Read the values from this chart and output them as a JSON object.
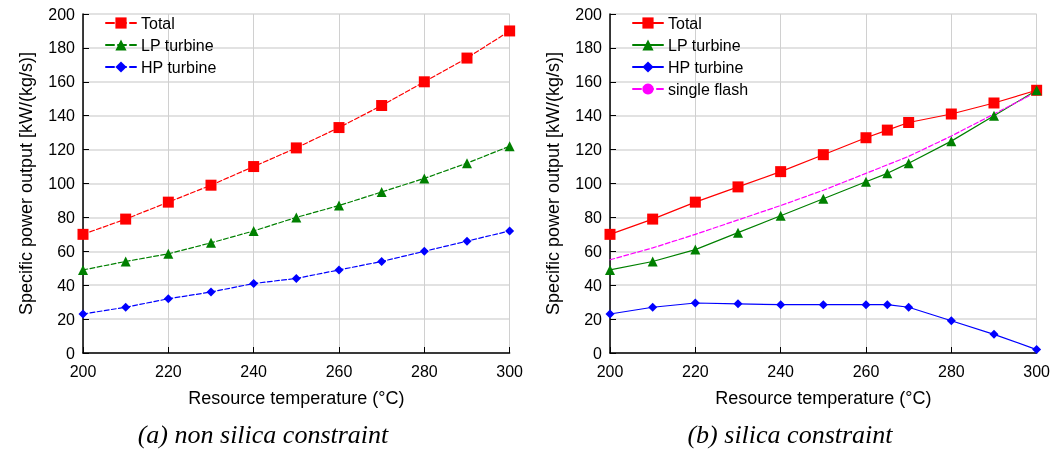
{
  "chart_data": [
    {
      "type": "line",
      "xlabel": "Resource temperature (°C)",
      "ylabel": "Specific power output [kW/(kg/s)]",
      "annotations": [
        "(a)  non silica constraint"
      ],
      "x": [
        200,
        210,
        220,
        230,
        240,
        250,
        260,
        270,
        280,
        290,
        300
      ],
      "xlim": [
        200,
        300
      ],
      "xticks": [
        200,
        220,
        240,
        260,
        280,
        300
      ],
      "ylim": [
        0,
        200
      ],
      "yticks": [
        0,
        20,
        40,
        60,
        80,
        100,
        120,
        140,
        160,
        180,
        200
      ],
      "grid": true,
      "legend": "top left",
      "line_style": "dashed",
      "series": [
        {
          "name": "Total",
          "color": "#ff0000",
          "marker": "square",
          "values": [
            70,
            79,
            89,
            99,
            110,
            121,
            133,
            146,
            160,
            174,
            190
          ]
        },
        {
          "name": "LP turbine",
          "color": "#008000",
          "marker": "triangle",
          "values": [
            49,
            54,
            58.5,
            65,
            72,
            80,
            87,
            95,
            103,
            112,
            122
          ]
        },
        {
          "name": "HP turbine",
          "color": "#0000ff",
          "marker": "diamond",
          "values": [
            23,
            27,
            32,
            36,
            41,
            44,
            49,
            54,
            60,
            66,
            72
          ]
        }
      ]
    },
    {
      "type": "line",
      "xlabel": "Resource temperature (°C)",
      "ylabel": "Specific power output [kW/(kg/s)]",
      "annotations": [
        "(b)  silica constraint"
      ],
      "x": [
        200,
        210,
        220,
        230,
        240,
        250,
        260,
        265,
        270,
        280,
        290,
        300
      ],
      "xlim": [
        200,
        300
      ],
      "xticks": [
        200,
        220,
        240,
        260,
        280,
        300
      ],
      "ylim": [
        0,
        200
      ],
      "yticks": [
        0,
        20,
        40,
        60,
        80,
        100,
        120,
        140,
        160,
        180,
        200
      ],
      "grid": true,
      "legend": "top left",
      "line_style": "solid",
      "series": [
        {
          "name": "Total",
          "color": "#ff0000",
          "marker": "square",
          "values": [
            70,
            79,
            89,
            98,
            107,
            117,
            127,
            131.5,
            136,
            141,
            147.5,
            155
          ]
        },
        {
          "name": "LP turbine",
          "color": "#008000",
          "marker": "triangle",
          "values": [
            49,
            54,
            61,
            71,
            81,
            91,
            101,
            106,
            112,
            125,
            140,
            155
          ]
        },
        {
          "name": "HP turbine",
          "color": "#0000ff",
          "marker": "diamond",
          "values": [
            23,
            27,
            29.5,
            29,
            28.5,
            28.5,
            28.5,
            28.5,
            27,
            19,
            11,
            2
          ]
        },
        {
          "name": "single flash",
          "color": "#ff00ff",
          "marker": "none",
          "line_style": "dashed",
          "x": [
            200,
            210,
            220,
            230,
            240,
            250,
            260,
            270,
            280,
            290,
            300
          ],
          "values": [
            55,
            62,
            70,
            78.5,
            87,
            96,
            106,
            116,
            128,
            141,
            154
          ]
        }
      ]
    }
  ]
}
